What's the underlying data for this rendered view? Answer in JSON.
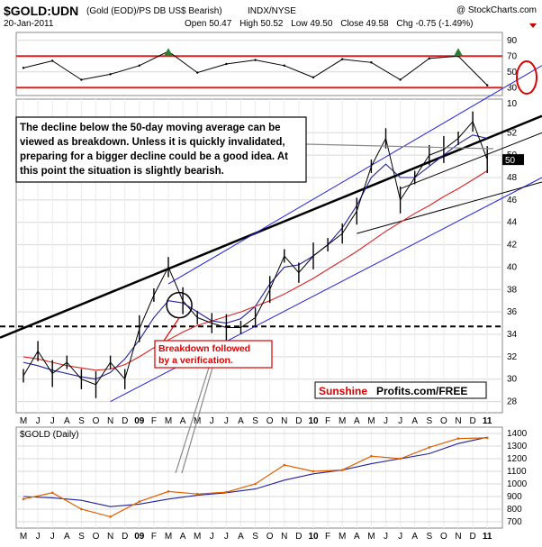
{
  "header": {
    "symbol": "$GOLD:UDN",
    "description": "(Gold (EOD)/PS DB US$ Bearish)",
    "exchange": "INDX/NYSE",
    "date": "20-Jan-2011",
    "copyright": "@ StockCharts.com",
    "quote": {
      "open_label": "Open",
      "open": "50.47",
      "high_label": "High",
      "high": "50.52",
      "low_label": "Low",
      "low": "49.50",
      "close_label": "Close",
      "close": "49.58",
      "chg_label": "Chg",
      "chg": "-0.75 (-1.49%)"
    }
  },
  "annotations": {
    "main_note_lines": [
      "The decline below the 50-day moving average can be",
      "viewed as breakdown. Unless it is quickly invalidated,",
      "preparing for a bigger decline could be a good idea. At",
      "this point the situation is slightly bearish."
    ],
    "breakdown_lines": [
      "Breakdown followed",
      "by a verification."
    ],
    "watermark_left": "Sunshine",
    "watermark_right": "Profits.com/FREE"
  },
  "colors": {
    "price": "#000000",
    "ma50": "#2020a0",
    "ma200": "#dd2222",
    "trend_blue": "#2222dd",
    "rsi_band": "#dd2222",
    "rsi_fill": "#2e7d32",
    "gold_line": "#e06000",
    "annotation_red": "#dd0000"
  },
  "chart_data": [
    {
      "type": "line",
      "panel": "RSI",
      "title": "",
      "y_ticks": [
        30,
        50,
        70,
        90
      ],
      "reference_levels": [
        70,
        30
      ],
      "x": [
        "2008-05",
        "2008-07",
        "2008-09",
        "2008-11",
        "2009-01",
        "2009-03",
        "2009-05",
        "2009-07",
        "2009-09",
        "2009-11",
        "2010-01",
        "2010-03",
        "2010-05",
        "2010-07",
        "2010-09",
        "2010-11",
        "2011-01"
      ],
      "series": [
        {
          "values": [
            55,
            64,
            40,
            47,
            58,
            76,
            49,
            60,
            65,
            58,
            43,
            66,
            62,
            40,
            67,
            70,
            33
          ]
        }
      ]
    },
    {
      "type": "line",
      "panel": "price",
      "title": "$GOLD:UDN",
      "ylim": [
        27,
        55
      ],
      "y_ticks": [
        28,
        30,
        32,
        34,
        36,
        38,
        40,
        42,
        44,
        46,
        48,
        50,
        52
      ],
      "x_tick_labels": [
        "M",
        "J",
        "J",
        "A",
        "S",
        "O",
        "N",
        "D",
        "09",
        "F",
        "M",
        "A",
        "M",
        "J",
        "J",
        "A",
        "S",
        "O",
        "N",
        "D",
        "10",
        "F",
        "M",
        "A",
        "M",
        "J",
        "J",
        "A",
        "S",
        "O",
        "N",
        "D",
        "11"
      ],
      "x": [
        "2008-05",
        "2008-06",
        "2008-07",
        "2008-08",
        "2008-09",
        "2008-10",
        "2008-11",
        "2008-12",
        "2009-01",
        "2009-02",
        "2009-03",
        "2009-04",
        "2009-05",
        "2009-06",
        "2009-07",
        "2009-08",
        "2009-09",
        "2009-10",
        "2009-11",
        "2009-12",
        "2010-01",
        "2010-02",
        "2010-03",
        "2010-04",
        "2010-05",
        "2010-06",
        "2010-07",
        "2010-08",
        "2010-09",
        "2010-10",
        "2010-11",
        "2010-12",
        "2011-01"
      ],
      "series": [
        {
          "values": [
            30.3,
            32.5,
            30.5,
            31.5,
            30.0,
            29.5,
            31.5,
            30.0,
            34.5,
            37.5,
            40.0,
            37.0,
            35.5,
            35.0,
            34.6,
            34.6,
            35.5,
            38.0,
            41.0,
            39.5,
            41.0,
            42.0,
            43.0,
            45.0,
            49.0,
            51.5,
            46.0,
            48.0,
            50.0,
            50.5,
            51.5,
            53.0,
            49.6
          ]
        },
        {
          "values": [
            31.5,
            31.2,
            30.8,
            30.5,
            30.2,
            30.0,
            30.6,
            31.8,
            33.5,
            35.5,
            37.0,
            36.8,
            36.0,
            35.2,
            35.0,
            35.4,
            36.5,
            38.5,
            40.0,
            40.2,
            41.0,
            42.0,
            43.5,
            45.5,
            48.0,
            49.2,
            48.0,
            48.0,
            49.0,
            50.0,
            51.0,
            51.8,
            51.5
          ]
        },
        {
          "values": [
            32.0,
            31.8,
            31.5,
            31.2,
            31.0,
            30.8,
            30.9,
            31.3,
            32.0,
            32.8,
            33.5,
            34.2,
            34.8,
            35.2,
            35.6,
            36.0,
            36.5,
            37.0,
            37.6,
            38.3,
            39.0,
            39.8,
            40.6,
            41.4,
            42.3,
            43.2,
            44.0,
            44.8,
            45.5,
            46.3,
            47.0,
            47.8,
            48.6
          ]
        }
      ],
      "support_level": 34.7
    },
    {
      "type": "line",
      "panel": "$GOLD (Daily)",
      "title": "$GOLD (Daily)",
      "ylim": [
        650,
        1450
      ],
      "y_ticks": [
        700,
        800,
        900,
        1000,
        1100,
        1200,
        1300,
        1400
      ],
      "x": [
        "2008-05",
        "2008-07",
        "2008-09",
        "2008-11",
        "2009-01",
        "2009-03",
        "2009-05",
        "2009-07",
        "2009-09",
        "2009-11",
        "2010-01",
        "2010-03",
        "2010-05",
        "2010-07",
        "2010-09",
        "2010-11",
        "2011-01"
      ],
      "series": [
        {
          "values": [
            880,
            930,
            800,
            740,
            860,
            940,
            920,
            935,
            1000,
            1150,
            1100,
            1110,
            1220,
            1200,
            1290,
            1360,
            1365
          ]
        },
        {
          "values": [
            900,
            890,
            870,
            820,
            840,
            880,
            910,
            930,
            960,
            1030,
            1080,
            1110,
            1160,
            1200,
            1240,
            1320,
            1370
          ]
        }
      ]
    }
  ]
}
